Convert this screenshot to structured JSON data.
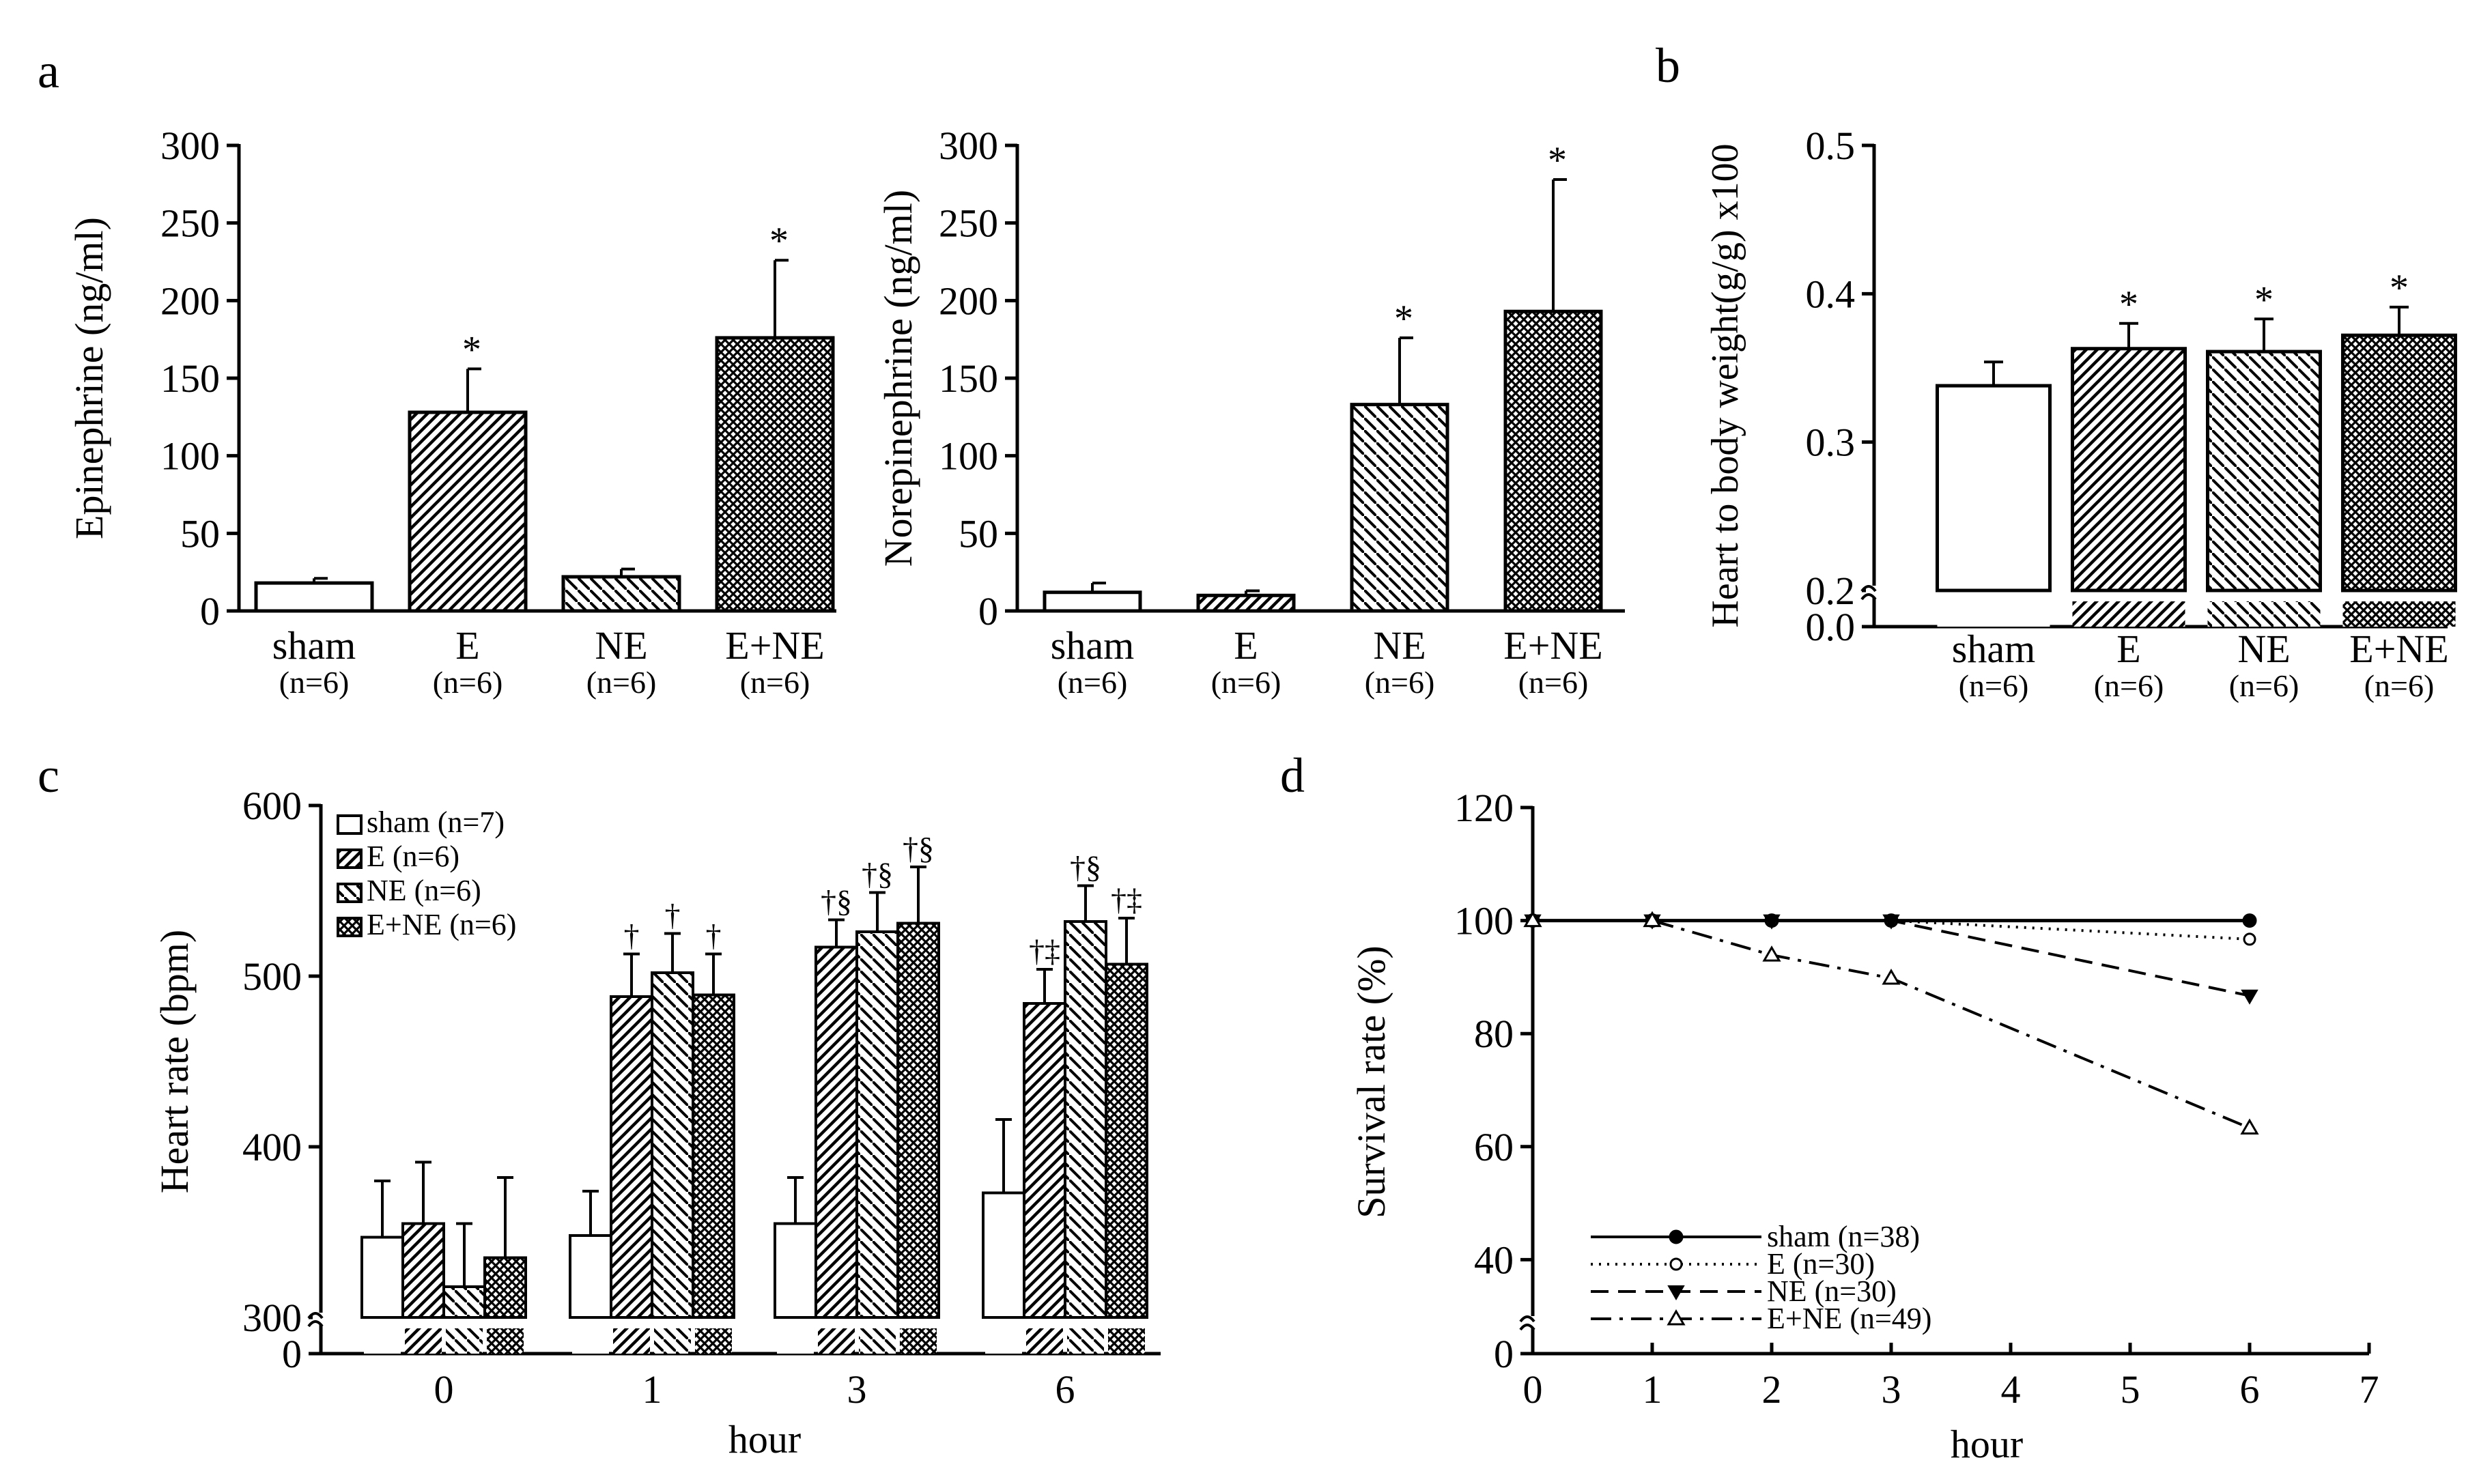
{
  "panel_letters": {
    "a": "a",
    "b": "b",
    "c": "c",
    "d": "d"
  },
  "chart_data": [
    {
      "id": "a1",
      "type": "bar",
      "title": "",
      "xlabel": "",
      "ylabel": "Epinephrine (ng/ml)",
      "ylim": [
        0,
        300
      ],
      "yticks": [
        "0",
        "50",
        "100",
        "150",
        "200",
        "250",
        "300"
      ],
      "categories": [
        "sham",
        "E",
        "NE",
        "E+NE"
      ],
      "ns": [
        "(n=6)",
        "(n=6)",
        "(n=6)",
        "(n=6)"
      ],
      "patterns": [
        "none",
        "diag",
        "diag2",
        "cross"
      ],
      "values": [
        18,
        128,
        22,
        176
      ],
      "errors": [
        3,
        28,
        5,
        50
      ],
      "annotations": [
        "",
        "*",
        "",
        "*"
      ]
    },
    {
      "id": "a2",
      "type": "bar",
      "title": "",
      "xlabel": "",
      "ylabel": "Norepinephrine (ng/ml)",
      "ylim": [
        0,
        300
      ],
      "yticks": [
        "0",
        "50",
        "100",
        "150",
        "200",
        "250",
        "300"
      ],
      "categories": [
        "sham",
        "E",
        "NE",
        "E+NE"
      ],
      "ns": [
        "(n=6)",
        "(n=6)",
        "(n=6)",
        "(n=6)"
      ],
      "patterns": [
        "none",
        "diag",
        "diag2",
        "cross"
      ],
      "values": [
        12,
        10,
        133,
        193
      ],
      "errors": [
        6,
        3,
        43,
        85
      ],
      "annotations": [
        "",
        "",
        "*",
        "*"
      ]
    },
    {
      "id": "b",
      "type": "bar",
      "title": "",
      "xlabel": "",
      "ylabel": "Heart to body weight(g/g) x100",
      "ylim": [
        0.2,
        0.5
      ],
      "axis_break": "0.0 to 0.2",
      "yticks": [
        "0.0",
        "0.2",
        "0.3",
        "0.4",
        "0.5"
      ],
      "categories": [
        "sham",
        "E",
        "NE",
        "E+NE"
      ],
      "ns": [
        "(n=6)",
        "(n=6)",
        "(n=6)",
        "(n=6)"
      ],
      "patterns": [
        "none",
        "diag",
        "diag2",
        "cross"
      ],
      "values": [
        0.338,
        0.363,
        0.361,
        0.372
      ],
      "errors": [
        0.016,
        0.017,
        0.022,
        0.019
      ],
      "annotations": [
        "",
        "*",
        "*",
        "*"
      ]
    },
    {
      "id": "c",
      "type": "bar",
      "title": "",
      "xlabel": "hour",
      "ylabel": "Heart rate (bpm)",
      "ylim": [
        300,
        600
      ],
      "axis_break": "0 to 300",
      "yticks": [
        "0",
        "300",
        "400",
        "500",
        "600"
      ],
      "categories": [
        "0",
        "1",
        "3",
        "6"
      ],
      "series": [
        {
          "name": "sham (n=7)",
          "pattern": "none",
          "values": [
            347,
            348,
            355,
            373
          ],
          "errors": [
            33,
            26,
            27,
            43
          ],
          "annotations": [
            "",
            "",
            "",
            ""
          ]
        },
        {
          "name": "E (n=6)",
          "pattern": "diag",
          "values": [
            355,
            488,
            517,
            484
          ],
          "errors": [
            36,
            25,
            16,
            20
          ],
          "annotations": [
            "",
            "†",
            "†§",
            "†‡"
          ]
        },
        {
          "name": "NE (n=6)",
          "pattern": "diag2",
          "values": [
            318,
            502,
            526,
            532
          ],
          "errors": [
            37,
            23,
            23,
            21
          ],
          "annotations": [
            "",
            "†",
            "†§",
            "†§"
          ]
        },
        {
          "name": "E+NE (n=6)",
          "pattern": "cross",
          "values": [
            335,
            489,
            531,
            507
          ],
          "errors": [
            47,
            24,
            33,
            27
          ],
          "annotations": [
            "",
            "†",
            "†§",
            "†‡"
          ]
        }
      ]
    },
    {
      "id": "d",
      "type": "line",
      "title": "",
      "xlabel": "hour",
      "ylabel": "Survival rate (%)",
      "xlim": [
        0,
        7
      ],
      "ylim": [
        30,
        120
      ],
      "axis_break": "0 to 30",
      "xticks": [
        "0",
        "1",
        "2",
        "3",
        "4",
        "5",
        "6",
        "7"
      ],
      "yticks": [
        "0",
        "40",
        "60",
        "80",
        "100",
        "120"
      ],
      "series": [
        {
          "name": "sham (n=38)",
          "dash": "solid",
          "marker": "filled-circle",
          "x": [
            0,
            1,
            2,
            3,
            6
          ],
          "y": [
            100,
            100,
            100,
            100,
            100
          ]
        },
        {
          "name": "E (n=30)",
          "dash": "dotted",
          "marker": "open-circle",
          "x": [
            0,
            1,
            2,
            3,
            6
          ],
          "y": [
            100,
            100,
            100,
            100,
            96.7
          ]
        },
        {
          "name": "NE (n=30)",
          "dash": "dashed",
          "marker": "filled-triangle",
          "x": [
            0,
            1,
            2,
            3,
            6
          ],
          "y": [
            100,
            100,
            100,
            100,
            86.7
          ]
        },
        {
          "name": "E+NE (n=49)",
          "dash": "dashdot",
          "marker": "open-triangle",
          "x": [
            0,
            1,
            2,
            3,
            6
          ],
          "y": [
            100,
            100,
            93.9,
            89.8,
            63.3
          ]
        }
      ]
    }
  ]
}
